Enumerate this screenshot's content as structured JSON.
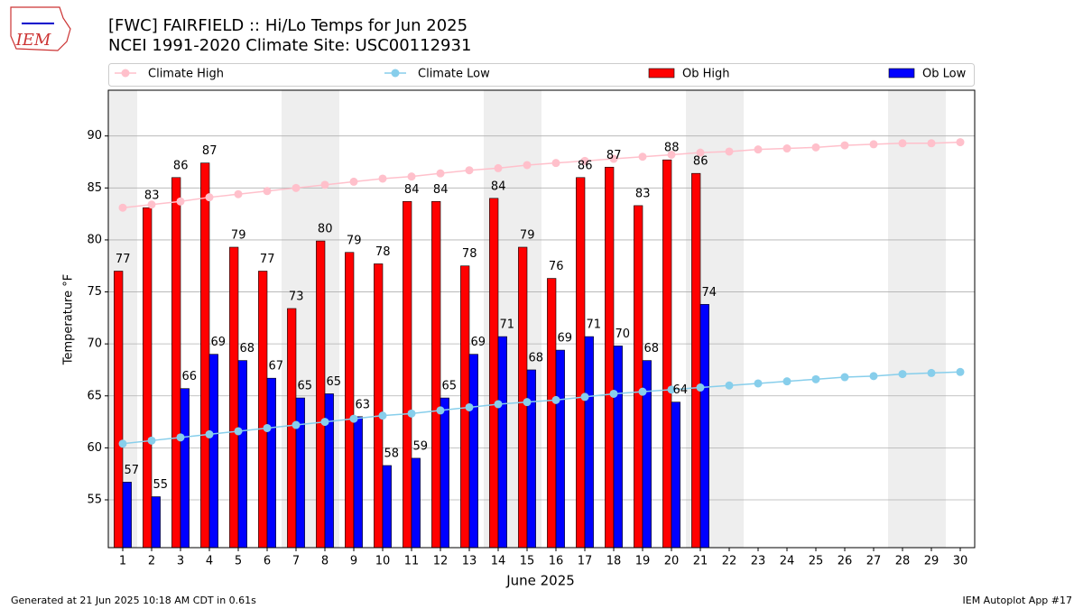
{
  "logo": "IEM",
  "footer": {
    "left": "Generated at 21 Jun 2025 10:18 AM CDT in 0.61s",
    "right": "IEM Autoplot App #17"
  },
  "chart_data": {
    "type": "bar",
    "title": "[FWC] FAIRFIELD :: Hi/Lo Temps for Jun 2025",
    "subtitle": "NCEI 1991-2020 Climate Site: USC00112931",
    "xlabel": "June 2025",
    "ylabel": "Temperature °F",
    "x": [
      1,
      2,
      3,
      4,
      5,
      6,
      7,
      8,
      9,
      10,
      11,
      12,
      13,
      14,
      15,
      16,
      17,
      18,
      19,
      20,
      21,
      22,
      23,
      24,
      25,
      26,
      27,
      28,
      29,
      30
    ],
    "xlim": [
      0.5,
      30.5
    ],
    "xticks": [
      1,
      2,
      3,
      4,
      5,
      6,
      7,
      8,
      9,
      10,
      11,
      12,
      13,
      14,
      15,
      16,
      17,
      18,
      19,
      20,
      21,
      22,
      23,
      24,
      25,
      26,
      27,
      28,
      29,
      30
    ],
    "ylim": [
      50.4,
      94.4
    ],
    "yticks": [
      55,
      60,
      65,
      70,
      75,
      80,
      85,
      90
    ],
    "grid": "y",
    "shaded_x": [
      1,
      7,
      8,
      14,
      15,
      21,
      22,
      28,
      29
    ],
    "shade_color": "#eeeeee",
    "legend": "top",
    "series": [
      {
        "name": "Climate High",
        "type": "line",
        "color": "#ffc0cb",
        "values": [
          83.1,
          83.4,
          83.7,
          84.1,
          84.4,
          84.7,
          85.0,
          85.3,
          85.6,
          85.9,
          86.1,
          86.4,
          86.7,
          86.9,
          87.2,
          87.4,
          87.6,
          87.8,
          88.0,
          88.2,
          88.4,
          88.5,
          88.7,
          88.8,
          88.9,
          89.1,
          89.2,
          89.3,
          89.3,
          89.4
        ]
      },
      {
        "name": "Climate Low",
        "type": "line",
        "color": "#87ceeb",
        "values": [
          60.4,
          60.7,
          61.0,
          61.3,
          61.6,
          61.9,
          62.2,
          62.5,
          62.8,
          63.1,
          63.3,
          63.6,
          63.9,
          64.2,
          64.4,
          64.6,
          64.9,
          65.2,
          65.4,
          65.6,
          65.8,
          66.0,
          66.2,
          66.4,
          66.6,
          66.8,
          66.9,
          67.1,
          67.2,
          67.3
        ]
      },
      {
        "name": "Ob High",
        "type": "bar",
        "color": "#ff0000",
        "values": [
          77.0,
          83.1,
          86.0,
          87.4,
          79.3,
          77.0,
          73.4,
          79.9,
          78.8,
          77.7,
          83.7,
          83.7,
          77.5,
          84.0,
          79.3,
          76.3,
          86.0,
          87.0,
          83.3,
          87.7,
          86.4,
          null,
          null,
          null,
          null,
          null,
          null,
          null,
          null,
          null
        ],
        "value_labels": [
          "77",
          "83",
          "86",
          "87",
          "79",
          "77",
          "73",
          "80",
          "79",
          "78",
          "84",
          "84",
          "78",
          "84",
          "79",
          "76",
          "86",
          "87",
          "83",
          "88",
          "86",
          null,
          null,
          null,
          null,
          null,
          null,
          null,
          null,
          null
        ]
      },
      {
        "name": "Ob Low",
        "type": "bar",
        "color": "#0000ff",
        "values": [
          56.7,
          55.3,
          65.7,
          69.0,
          68.4,
          66.7,
          64.8,
          65.2,
          63.0,
          58.3,
          59.0,
          64.8,
          69.0,
          70.7,
          67.5,
          69.4,
          70.7,
          69.8,
          68.4,
          64.4,
          73.8,
          null,
          null,
          null,
          null,
          null,
          null,
          null,
          null,
          null
        ],
        "value_labels": [
          "57",
          "55",
          "66",
          "69",
          "68",
          "67",
          "65",
          "65",
          "63",
          "58",
          "59",
          "65",
          "69",
          "71",
          "68",
          "69",
          "71",
          "70",
          "68",
          "64",
          "74",
          null,
          null,
          null,
          null,
          null,
          null,
          null,
          null,
          null
        ]
      }
    ]
  }
}
